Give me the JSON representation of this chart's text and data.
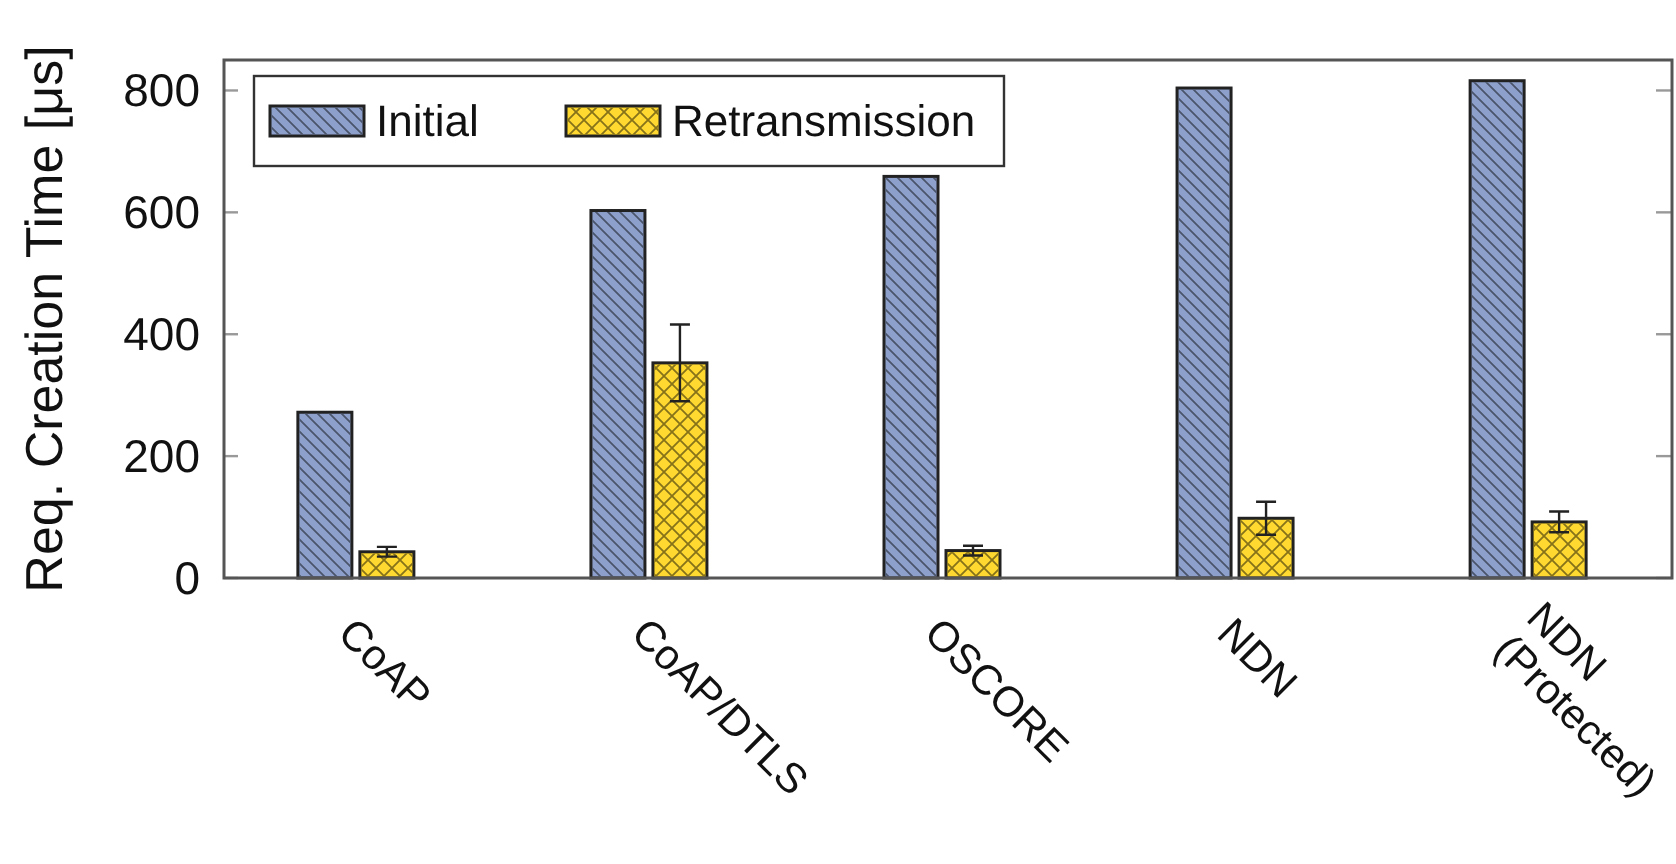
{
  "chart_data": {
    "type": "bar",
    "ylabel": "Req. Creation Time [μs]",
    "categories": [
      "CoAP",
      "CoAP/DTLS",
      "OSCORE",
      "NDN",
      "NDN\n(Protected)"
    ],
    "series": [
      {
        "name": "Initial",
        "color": "#8da0cb",
        "values": [
          272,
          603,
          659,
          804,
          816
        ]
      },
      {
        "name": "Retransmission",
        "color": "#ffd92f",
        "values": [
          43,
          353,
          45,
          98,
          92
        ],
        "errors": [
          8,
          63,
          8,
          27,
          17
        ]
      }
    ],
    "ylim": [
      0,
      850
    ],
    "yticks": [
      0,
      200,
      400,
      600,
      800
    ],
    "legend": "top left"
  }
}
